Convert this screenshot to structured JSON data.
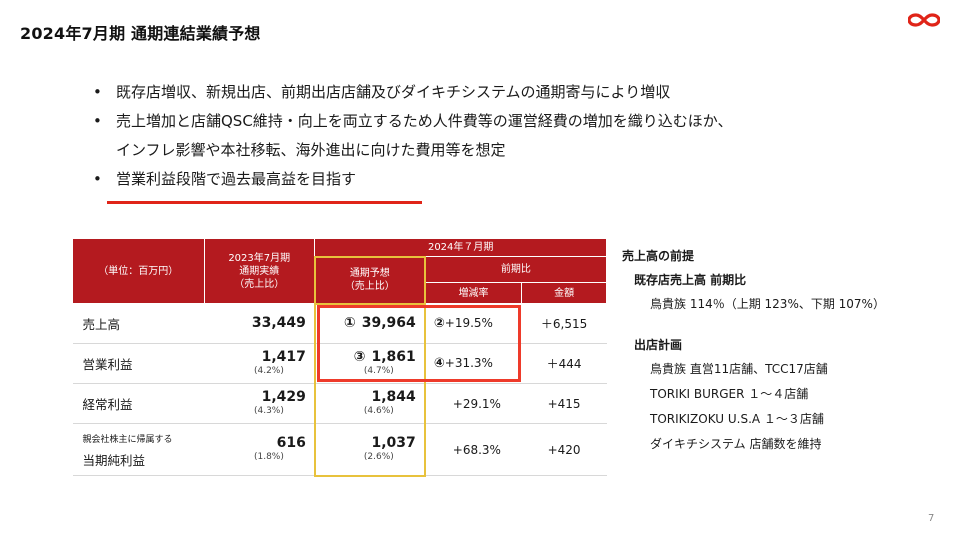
{
  "title": "2024年7月期 通期連結業績予想",
  "page_number": "7",
  "bullets": [
    "既存店増収、新規出店、前期出店店舗及びダイキチシステムの通期寄与により増収",
    "売上増加と店舗QSC維持・向上を両立するため人件費等の運営経費の増加を織り込むほか、",
    "インフレ影響や本社移転、海外進出に向けた費用等を想定",
    "営業利益段階で過去最高益を目指す"
  ],
  "bullet_symbol": "•",
  "table": {
    "unit_label": "（単位：百万円）",
    "actual_head": [
      "2023年7月期",
      "通期実績",
      "（売上比）"
    ],
    "fy_head": "2024年７月期",
    "forecast_head": [
      "通期予想",
      "（売上比）"
    ],
    "yoy_head": "前期比",
    "change_head": "増減率",
    "amount_head": "金額",
    "rows": [
      {
        "label": "売上高",
        "label_small": "",
        "actual": "33,449",
        "actual_ratio": "",
        "mark": "①",
        "forecast": "39,964",
        "forecast_ratio": "",
        "change_mark": "②",
        "change": "+19.5%",
        "amount": "＋6,515"
      },
      {
        "label": "営業利益",
        "label_small": "",
        "actual": "1,417",
        "actual_ratio": "(4.2%)",
        "mark": "③",
        "forecast": "1,861",
        "forecast_ratio": "(4.7%)",
        "change_mark": "④",
        "change": "+31.3%",
        "amount": "＋444"
      },
      {
        "label": "経常利益",
        "label_small": "",
        "actual": "1,429",
        "actual_ratio": "(4.3%)",
        "mark": "",
        "forecast": "1,844",
        "forecast_ratio": "(4.6%)",
        "change_mark": "",
        "change": "+29.1%",
        "amount": "+415"
      },
      {
        "label": "当期純利益",
        "label_small": "親会社株主に帰属する",
        "actual": "616",
        "actual_ratio": "(1.8%)",
        "mark": "",
        "forecast": "1,037",
        "forecast_ratio": "(2.6%)",
        "change_mark": "",
        "change": "+68.3%",
        "amount": "+420"
      }
    ]
  },
  "side": {
    "sales_title": "売上高の前提",
    "existing_title": "既存店売上高 前期比",
    "existing_text": "鳥貴族 114％（上期 123%、下期 107%）",
    "plan_title": "出店計画",
    "plan_items": [
      "鳥貴族 直営11店舗、TCC17店舗",
      "TORIKI BURGER １～４店舗",
      "TORIKIZOKU U.S.A １～３店舗",
      "ダイキチシステム 店舗数を維持"
    ]
  },
  "colors": {
    "header_red": "#b41a1f",
    "highlight_red": "#ee3a2a",
    "forecast_gold": "#e8c23c",
    "logo_red": "#e02418"
  },
  "icons": {
    "logo": "infinity-logo-icon"
  }
}
